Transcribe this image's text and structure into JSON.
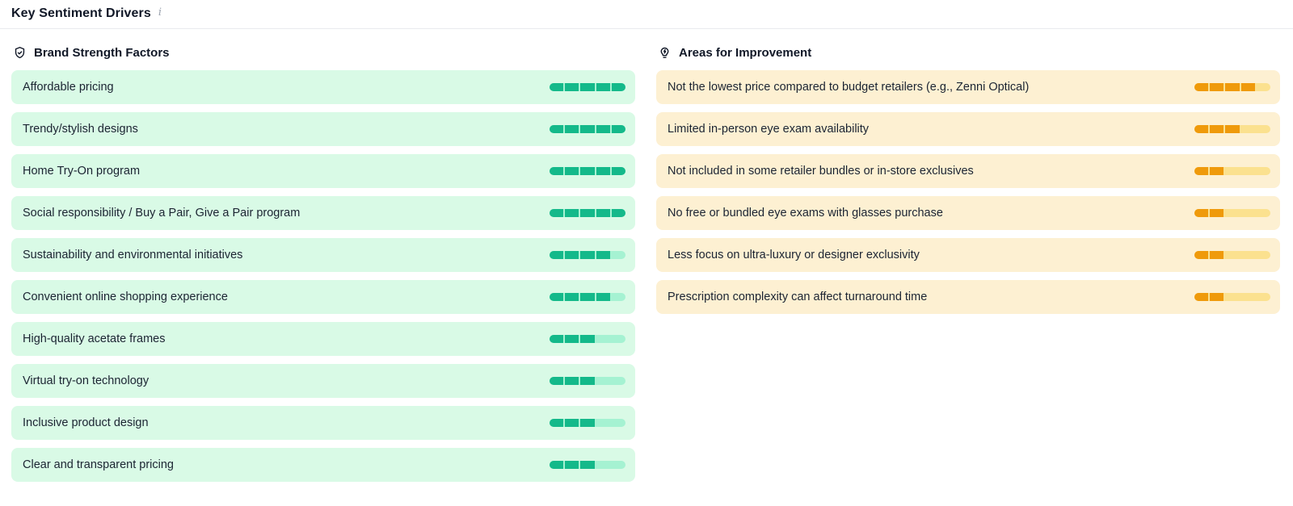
{
  "panel": {
    "title": "Key Sentiment Drivers",
    "info_icon_glyph": "i"
  },
  "columns": {
    "strengths": {
      "title": "Brand Strength Factors",
      "icon": "shield-check-icon",
      "colors": {
        "row_bg": "#d9fae6",
        "bar_filled": "#14b98a",
        "bar_empty": "#a5f2d2"
      },
      "items": [
        {
          "label": "Affordable pricing",
          "score": 5,
          "max": 5
        },
        {
          "label": "Trendy/stylish designs",
          "score": 5,
          "max": 5
        },
        {
          "label": "Home Try-On program",
          "score": 5,
          "max": 5
        },
        {
          "label": "Social responsibility / Buy a Pair, Give a Pair program",
          "score": 5,
          "max": 5
        },
        {
          "label": "Sustainability and environmental initiatives",
          "score": 4,
          "max": 5
        },
        {
          "label": "Convenient online shopping experience",
          "score": 4,
          "max": 5
        },
        {
          "label": "High-quality acetate frames",
          "score": 3,
          "max": 5
        },
        {
          "label": "Virtual try-on technology",
          "score": 3,
          "max": 5
        },
        {
          "label": "Inclusive product design",
          "score": 3,
          "max": 5
        },
        {
          "label": "Clear and transparent pricing",
          "score": 3,
          "max": 5
        }
      ]
    },
    "improvements": {
      "title": "Areas for Improvement",
      "icon": "lightbulb-icon",
      "colors": {
        "row_bg": "#fdf0d2",
        "bar_filled": "#ef9a0b",
        "bar_empty": "#fbe18f"
      },
      "items": [
        {
          "label": "Not the lowest price compared to budget retailers (e.g., Zenni Optical)",
          "score": 4,
          "max": 5
        },
        {
          "label": "Limited in-person eye exam availability",
          "score": 3,
          "max": 5
        },
        {
          "label": "Not included in some retailer bundles or in-store exclusives",
          "score": 2,
          "max": 5
        },
        {
          "label": "No free or bundled eye exams with glasses purchase",
          "score": 2,
          "max": 5
        },
        {
          "label": "Less focus on ultra-luxury or designer exclusivity",
          "score": 2,
          "max": 5
        },
        {
          "label": "Prescription complexity can affect turnaround time",
          "score": 2,
          "max": 5
        }
      ]
    }
  }
}
